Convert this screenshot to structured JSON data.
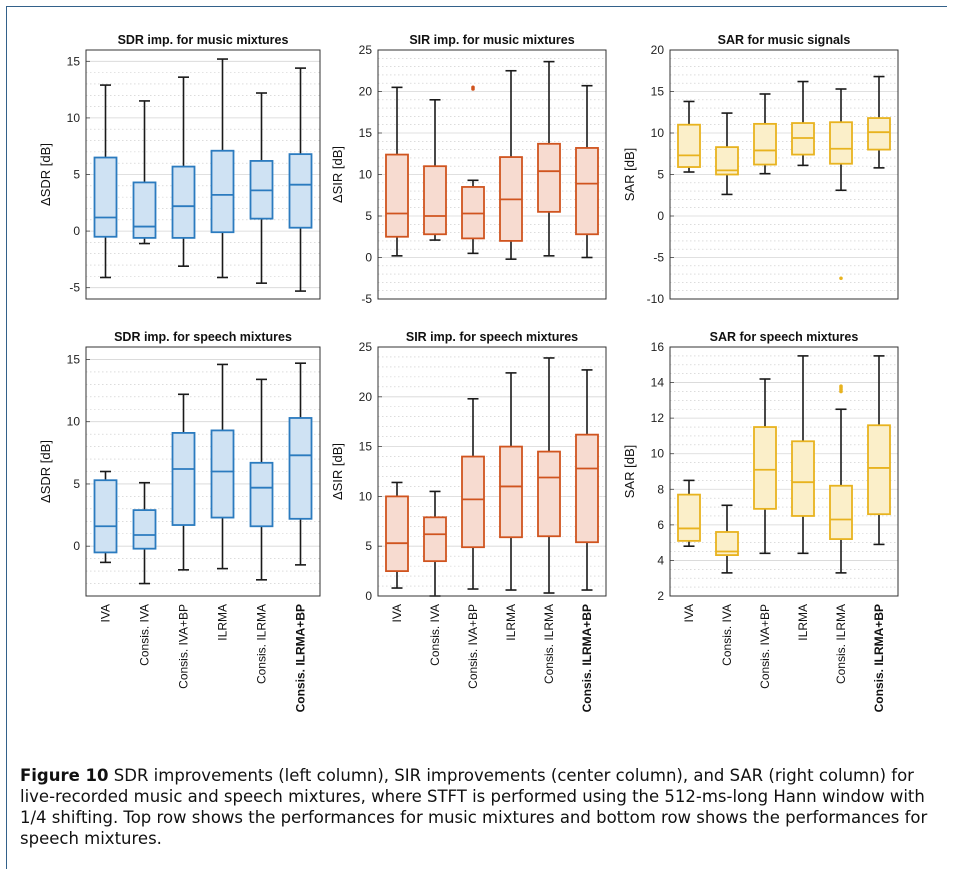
{
  "categories": [
    "IVA",
    "Consis. IVA",
    "Consis. IVA+BP",
    "ILRMA",
    "Consis. ILRMA",
    "Consis. ILRMA+BP"
  ],
  "caption": {
    "label": "Figure 10",
    "text": " SDR improvements (left column), SIR improvements (center column), and SAR (right column) for live-recorded music and speech mixtures, where STFT is performed using the 512-ms-long Hann window with 1/4 shifting. Top row shows the performances for music mixtures and bottom row shows the performances for speech mixtures."
  },
  "palette": {
    "SDR": {
      "stroke": "#2b7bbf",
      "fill": "#cfe2f3"
    },
    "SIR": {
      "stroke": "#d0541f",
      "fill": "#f7dbd0"
    },
    "SAR": {
      "stroke": "#e8b31f",
      "fill": "#fbefc9"
    }
  },
  "chart_data": [
    {
      "type": "box",
      "metric": "SDR",
      "title": "SDR imp. for music mixtures",
      "ylabel": "ΔSDR [dB]",
      "ylim": [
        -6,
        16
      ],
      "yticks": [
        -5,
        0,
        5,
        10,
        15
      ],
      "minor_step": 1,
      "boxes": [
        {
          "min": -4.1,
          "q1": -0.5,
          "median": 1.2,
          "q3": 6.5,
          "max": 12.9,
          "outliers": []
        },
        {
          "min": -1.1,
          "q1": -0.6,
          "median": 0.4,
          "q3": 4.3,
          "max": 11.5,
          "outliers": []
        },
        {
          "min": -3.1,
          "q1": -0.6,
          "median": 2.2,
          "q3": 5.7,
          "max": 13.6,
          "outliers": []
        },
        {
          "min": -4.1,
          "q1": -0.1,
          "median": 3.2,
          "q3": 7.1,
          "max": 15.2,
          "outliers": []
        },
        {
          "min": -4.6,
          "q1": 1.1,
          "median": 3.6,
          "q3": 6.2,
          "max": 12.2,
          "outliers": []
        },
        {
          "min": -5.3,
          "q1": 0.3,
          "median": 4.1,
          "q3": 6.8,
          "max": 14.4,
          "outliers": []
        }
      ]
    },
    {
      "type": "box",
      "metric": "SIR",
      "title": "SIR imp. for music mixtures",
      "ylabel": "ΔSIR [dB]",
      "ylim": [
        -5,
        25
      ],
      "yticks": [
        -5,
        0,
        5,
        10,
        15,
        20,
        25
      ],
      "minor_step": 1,
      "boxes": [
        {
          "min": 0.2,
          "q1": 2.5,
          "median": 5.3,
          "q3": 12.4,
          "max": 20.5,
          "outliers": []
        },
        {
          "min": 2.1,
          "q1": 2.8,
          "median": 5.0,
          "q3": 11.0,
          "max": 19.0,
          "outliers": []
        },
        {
          "min": 0.5,
          "q1": 2.3,
          "median": 5.3,
          "q3": 8.5,
          "max": 9.3,
          "outliers": [
            20.3,
            20.5
          ]
        },
        {
          "min": -0.2,
          "q1": 2.0,
          "median": 7.0,
          "q3": 12.1,
          "max": 22.5,
          "outliers": []
        },
        {
          "min": 0.2,
          "q1": 5.5,
          "median": 10.4,
          "q3": 13.7,
          "max": 23.6,
          "outliers": []
        },
        {
          "min": 0.0,
          "q1": 2.8,
          "median": 8.9,
          "q3": 13.2,
          "max": 20.7,
          "outliers": []
        }
      ]
    },
    {
      "type": "box",
      "metric": "SAR",
      "title": "SAR for music signals",
      "ylabel": "SAR [dB]",
      "ylim": [
        -10,
        20
      ],
      "yticks": [
        -10,
        -5,
        0,
        5,
        10,
        15,
        20
      ],
      "minor_step": 1,
      "boxes": [
        {
          "min": 5.3,
          "q1": 5.9,
          "median": 7.3,
          "q3": 11.0,
          "max": 13.8,
          "outliers": []
        },
        {
          "min": 2.6,
          "q1": 5.0,
          "median": 5.5,
          "q3": 8.3,
          "max": 12.4,
          "outliers": []
        },
        {
          "min": 5.1,
          "q1": 6.2,
          "median": 7.9,
          "q3": 11.1,
          "max": 14.7,
          "outliers": []
        },
        {
          "min": 6.1,
          "q1": 7.4,
          "median": 9.4,
          "q3": 11.2,
          "max": 16.2,
          "outliers": []
        },
        {
          "min": 3.1,
          "q1": 6.3,
          "median": 8.1,
          "q3": 11.3,
          "max": 15.3,
          "outliers": [
            -7.5
          ]
        },
        {
          "min": 5.8,
          "q1": 8.0,
          "median": 10.1,
          "q3": 11.8,
          "max": 16.8,
          "outliers": []
        }
      ]
    },
    {
      "type": "box",
      "metric": "SDR",
      "title": "SDR imp. for speech mixtures",
      "ylabel": "ΔSDR [dB]",
      "ylim": [
        -4,
        16
      ],
      "yticks": [
        0,
        5,
        10,
        15
      ],
      "minor_step": 1,
      "boxes": [
        {
          "min": -1.3,
          "q1": -0.5,
          "median": 1.6,
          "q3": 5.3,
          "max": 6.0,
          "outliers": []
        },
        {
          "min": -3.0,
          "q1": -0.2,
          "median": 0.9,
          "q3": 2.9,
          "max": 5.1,
          "outliers": []
        },
        {
          "min": -1.9,
          "q1": 1.7,
          "median": 6.2,
          "q3": 9.1,
          "max": 12.2,
          "outliers": []
        },
        {
          "min": -1.8,
          "q1": 2.3,
          "median": 6.0,
          "q3": 9.3,
          "max": 14.6,
          "outliers": []
        },
        {
          "min": -2.7,
          "q1": 1.6,
          "median": 4.7,
          "q3": 6.7,
          "max": 13.4,
          "outliers": []
        },
        {
          "min": -1.5,
          "q1": 2.2,
          "median": 7.3,
          "q3": 10.3,
          "max": 14.7,
          "outliers": []
        }
      ]
    },
    {
      "type": "box",
      "metric": "SIR",
      "title": "SIR imp. for speech mixtures",
      "ylabel": "ΔSIR [dB]",
      "ylim": [
        0,
        25
      ],
      "yticks": [
        0,
        5,
        10,
        15,
        20,
        25
      ],
      "minor_step": 1,
      "boxes": [
        {
          "min": 0.8,
          "q1": 2.5,
          "median": 5.3,
          "q3": 10.0,
          "max": 11.4,
          "outliers": []
        },
        {
          "min": 0.0,
          "q1": 3.5,
          "median": 6.2,
          "q3": 7.9,
          "max": 10.5,
          "outliers": []
        },
        {
          "min": 0.7,
          "q1": 4.9,
          "median": 9.7,
          "q3": 14.0,
          "max": 19.8,
          "outliers": []
        },
        {
          "min": 0.6,
          "q1": 5.9,
          "median": 11.0,
          "q3": 15.0,
          "max": 22.4,
          "outliers": []
        },
        {
          "min": 0.3,
          "q1": 6.0,
          "median": 11.9,
          "q3": 14.5,
          "max": 23.9,
          "outliers": []
        },
        {
          "min": 0.6,
          "q1": 5.4,
          "median": 12.8,
          "q3": 16.2,
          "max": 22.7,
          "outliers": []
        }
      ]
    },
    {
      "type": "box",
      "metric": "SAR",
      "title": "SAR for speech mixtures",
      "ylabel": "SAR [dB]",
      "ylim": [
        2,
        16
      ],
      "yticks": [
        2,
        4,
        6,
        8,
        10,
        12,
        14,
        16
      ],
      "minor_step": 0.5,
      "boxes": [
        {
          "min": 4.8,
          "q1": 5.1,
          "median": 5.8,
          "q3": 7.7,
          "max": 8.5,
          "outliers": []
        },
        {
          "min": 3.3,
          "q1": 4.3,
          "median": 4.5,
          "q3": 5.6,
          "max": 7.1,
          "outliers": []
        },
        {
          "min": 4.4,
          "q1": 6.9,
          "median": 9.1,
          "q3": 11.5,
          "max": 14.2,
          "outliers": []
        },
        {
          "min": 4.4,
          "q1": 6.5,
          "median": 8.4,
          "q3": 10.7,
          "max": 15.5,
          "outliers": []
        },
        {
          "min": 3.3,
          "q1": 5.2,
          "median": 6.3,
          "q3": 8.2,
          "max": 12.5,
          "outliers": [
            13.5,
            13.6,
            13.7,
            13.8
          ]
        },
        {
          "min": 4.9,
          "q1": 6.6,
          "median": 9.2,
          "q3": 11.6,
          "max": 15.5,
          "outliers": []
        }
      ]
    }
  ]
}
